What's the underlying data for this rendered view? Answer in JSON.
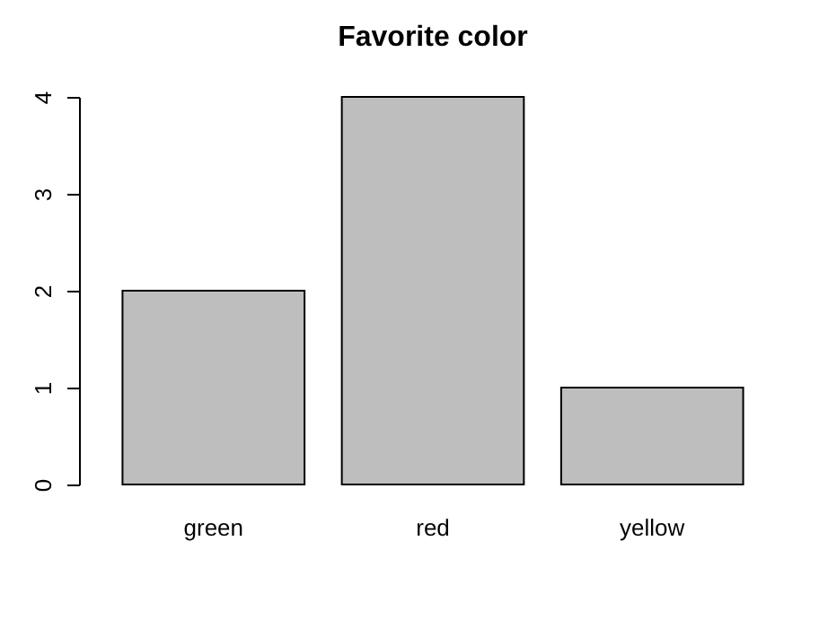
{
  "chart_data": {
    "type": "bar",
    "title": "Favorite color",
    "categories": [
      "green",
      "red",
      "yellow"
    ],
    "values": [
      2,
      4,
      1
    ],
    "color": "#bebebe",
    "ylim": [
      0,
      4
    ],
    "yticks": [
      0,
      1,
      2,
      3,
      4
    ],
    "grid": false
  }
}
